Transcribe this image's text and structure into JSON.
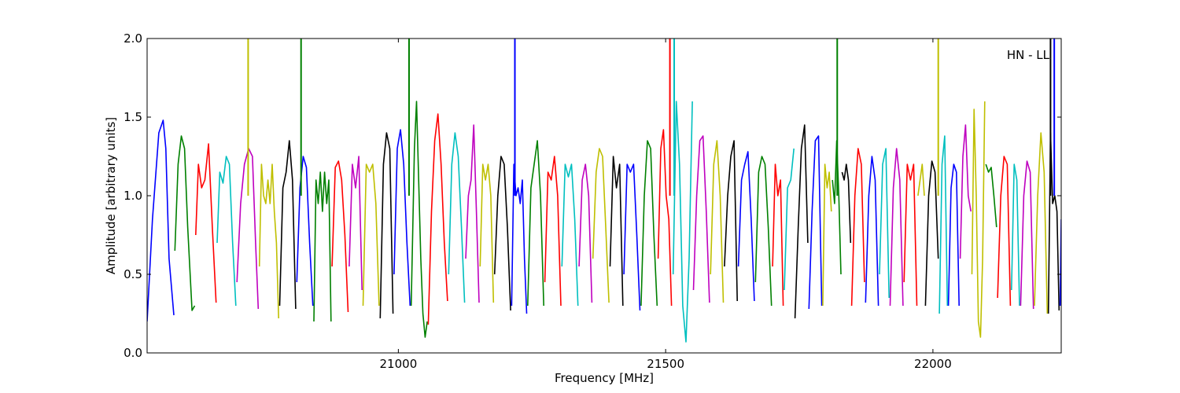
{
  "chart_data": {
    "type": "line",
    "title": "",
    "xlabel": "Frequency [MHz]",
    "ylabel": "Amplitude [arbitrary units]",
    "annotation": "HN - LL",
    "xlim": [
      20530,
      22240
    ],
    "ylim": [
      0.0,
      2.0
    ],
    "xticks": [
      21000,
      21500,
      22000
    ],
    "xtick_labels": [
      "21000",
      "21500",
      "22000"
    ],
    "yticks": [
      0.0,
      0.5,
      1.0,
      1.5,
      2.0
    ],
    "ytick_labels": [
      "0.0",
      "0.5",
      "1.0",
      "1.5",
      "2.0"
    ],
    "grid": false,
    "legend": "none",
    "color_cycle": [
      "#0000ff",
      "#008000",
      "#ff0000",
      "#00bfbf",
      "#bf00bf",
      "#bfbf00",
      "#000000"
    ],
    "series": [
      {
        "color": "#0000ff",
        "x": [
          20530,
          20540,
          20552,
          20560,
          20565,
          20571,
          20580
        ],
        "y": [
          0.2,
          0.85,
          1.4,
          1.48,
          1.3,
          0.6,
          0.24
        ]
      },
      {
        "color": "#008000",
        "x": [
          20582,
          20588,
          20594,
          20600,
          20606,
          20614,
          20619
        ],
        "y": [
          0.65,
          1.2,
          1.38,
          1.3,
          0.8,
          0.27,
          0.3
        ]
      },
      {
        "color": "#ff0000",
        "x": [
          20621,
          20626,
          20632,
          20638,
          20645,
          20652,
          20659
        ],
        "y": [
          0.75,
          1.2,
          1.05,
          1.1,
          1.33,
          0.8,
          0.32
        ]
      },
      {
        "color": "#00bfbf",
        "x": [
          20661,
          20666,
          20672,
          20678,
          20684,
          20690,
          20696
        ],
        "y": [
          0.7,
          1.15,
          1.08,
          1.25,
          1.2,
          0.7,
          0.3
        ]
      },
      {
        "color": "#bf00bf",
        "x": [
          20698,
          20705,
          20712,
          20720,
          20727,
          20733,
          20738
        ],
        "y": [
          0.45,
          0.95,
          1.2,
          1.3,
          1.25,
          0.7,
          0.28
        ]
      },
      {
        "color": "#bfbf00",
        "x": [
          20740,
          20744,
          20748,
          20752,
          20756,
          20760,
          20764,
          20768,
          20772,
          20776
        ],
        "y": [
          0.55,
          1.2,
          1.0,
          0.95,
          1.1,
          0.95,
          1.2,
          0.9,
          0.7,
          0.22
        ]
      },
      {
        "color": "#000000",
        "x": [
          20778,
          20784,
          20790,
          20796,
          20802,
          20808
        ],
        "y": [
          0.3,
          1.05,
          1.15,
          1.35,
          1.1,
          0.28
        ]
      },
      {
        "color": "#0000ff",
        "x": [
          20810,
          20816,
          20822,
          20828,
          20834,
          20840
        ],
        "y": [
          0.45,
          1.05,
          1.25,
          1.18,
          0.7,
          0.3
        ]
      },
      {
        "color": "#008000",
        "x": [
          20842,
          20846,
          20850,
          20854,
          20858,
          20862,
          20866,
          20870,
          20874
        ],
        "y": [
          0.2,
          1.1,
          0.95,
          1.15,
          0.9,
          1.15,
          0.95,
          1.1,
          0.2
        ]
      },
      {
        "color": "#ff0000",
        "x": [
          20876,
          20882,
          20888,
          20894,
          20900,
          20906
        ],
        "y": [
          0.55,
          1.18,
          1.22,
          1.1,
          0.75,
          0.26
        ]
      },
      {
        "color": "#bf00bf",
        "x": [
          20908,
          20914,
          20920,
          20926,
          20932
        ],
        "y": [
          0.55,
          1.2,
          1.05,
          1.25,
          0.4
        ]
      },
      {
        "color": "#bfbf00",
        "x": [
          20934,
          20940,
          20946,
          20952,
          20958,
          20964
        ],
        "y": [
          0.3,
          1.2,
          1.15,
          1.2,
          0.95,
          0.3
        ]
      },
      {
        "color": "#000000",
        "x": [
          20966,
          20972,
          20978,
          20984,
          20990
        ],
        "y": [
          0.22,
          1.2,
          1.4,
          1.3,
          0.25
        ]
      },
      {
        "color": "#0000ff",
        "x": [
          20992,
          20998,
          21004,
          21010,
          21016,
          21022
        ],
        "y": [
          0.5,
          1.3,
          1.42,
          1.2,
          0.7,
          0.3
        ]
      },
      {
        "color": "#008000",
        "x": [
          21024,
          21030,
          21034,
          21038,
          21042,
          21046,
          21050,
          21054
        ],
        "y": [
          0.3,
          1.3,
          1.6,
          1.1,
          0.6,
          0.25,
          0.1,
          0.2
        ]
      },
      {
        "color": "#ff0000",
        "x": [
          21056,
          21062,
          21068,
          21074,
          21080,
          21086,
          21092
        ],
        "y": [
          0.18,
          0.9,
          1.35,
          1.52,
          1.2,
          0.7,
          0.33
        ]
      },
      {
        "color": "#00bfbf",
        "x": [
          21094,
          21100,
          21106,
          21112,
          21118,
          21124
        ],
        "y": [
          0.5,
          1.2,
          1.4,
          1.25,
          0.8,
          0.32
        ]
      },
      {
        "color": "#bf00bf",
        "x": [
          21126,
          21131,
          21136,
          21141,
          21146,
          21151
        ],
        "y": [
          0.6,
          1.0,
          1.1,
          1.45,
          0.9,
          0.32
        ]
      },
      {
        "color": "#bfbf00",
        "x": [
          21153,
          21158,
          21163,
          21168,
          21173,
          21178
        ],
        "y": [
          0.55,
          1.2,
          1.1,
          1.2,
          1.0,
          0.32
        ]
      },
      {
        "color": "#000000",
        "x": [
          21180,
          21186,
          21192,
          21198,
          21204,
          21210
        ],
        "y": [
          0.5,
          1.0,
          1.25,
          1.2,
          0.8,
          0.27
        ]
      },
      {
        "color": "#0000ff",
        "x": [
          21212,
          21216,
          21220,
          21224,
          21228,
          21232,
          21236,
          21240
        ],
        "y": [
          0.3,
          1.2,
          1.0,
          1.05,
          0.95,
          1.1,
          0.6,
          0.25
        ]
      },
      {
        "color": "#008000",
        "x": [
          21242,
          21248,
          21254,
          21260,
          21266,
          21272
        ],
        "y": [
          0.3,
          1.05,
          1.2,
          1.35,
          1.0,
          0.3
        ]
      },
      {
        "color": "#ff0000",
        "x": [
          21274,
          21280,
          21286,
          21292,
          21298,
          21304
        ],
        "y": [
          0.45,
          1.15,
          1.1,
          1.25,
          1.0,
          0.3
        ]
      },
      {
        "color": "#00bfbf",
        "x": [
          21306,
          21312,
          21318,
          21324,
          21330,
          21336
        ],
        "y": [
          0.55,
          1.2,
          1.12,
          1.2,
          0.85,
          0.3
        ]
      },
      {
        "color": "#bf00bf",
        "x": [
          21338,
          21344,
          21350,
          21356,
          21362
        ],
        "y": [
          0.55,
          1.1,
          1.2,
          1.0,
          0.32
        ]
      },
      {
        "color": "#bfbf00",
        "x": [
          21364,
          21370,
          21376,
          21382,
          21388,
          21394
        ],
        "y": [
          0.6,
          1.15,
          1.3,
          1.25,
          0.8,
          0.32
        ]
      },
      {
        "color": "#000000",
        "x": [
          21396,
          21402,
          21408,
          21414,
          21420
        ],
        "y": [
          0.55,
          1.25,
          1.05,
          1.2,
          0.3
        ]
      },
      {
        "color": "#0000ff",
        "x": [
          21422,
          21428,
          21434,
          21440,
          21446,
          21452
        ],
        "y": [
          0.5,
          1.2,
          1.15,
          1.2,
          0.75,
          0.27
        ]
      },
      {
        "color": "#008000",
        "x": [
          21454,
          21460,
          21466,
          21472,
          21478,
          21484
        ],
        "y": [
          0.3,
          1.0,
          1.35,
          1.3,
          0.75,
          0.3
        ]
      },
      {
        "color": "#ff0000",
        "x": [
          21486,
          21491,
          21496,
          21501,
          21506,
          21511
        ],
        "y": [
          0.6,
          1.3,
          1.42,
          1.0,
          0.85,
          0.3
        ]
      },
      {
        "color": "#00bfbf",
        "x": [
          21514,
          21520,
          21526,
          21532,
          21538,
          21544,
          21550
        ],
        "y": [
          0.5,
          1.6,
          1.2,
          0.3,
          0.07,
          0.6,
          1.6
        ]
      },
      {
        "color": "#bf00bf",
        "x": [
          21552,
          21558,
          21564,
          21570,
          21576,
          21582
        ],
        "y": [
          0.4,
          1.0,
          1.35,
          1.38,
          0.9,
          0.32
        ]
      },
      {
        "color": "#bfbf00",
        "x": [
          21584,
          21590,
          21596,
          21602,
          21608
        ],
        "y": [
          0.5,
          1.2,
          1.35,
          1.0,
          0.32
        ]
      },
      {
        "color": "#000000",
        "x": [
          21610,
          21616,
          21622,
          21628,
          21634
        ],
        "y": [
          0.55,
          1.0,
          1.25,
          1.35,
          0.33
        ]
      },
      {
        "color": "#0000ff",
        "x": [
          21636,
          21642,
          21648,
          21654,
          21660,
          21666
        ],
        "y": [
          0.55,
          1.1,
          1.2,
          1.28,
          0.85,
          0.33
        ]
      },
      {
        "color": "#008000",
        "x": [
          21668,
          21674,
          21680,
          21686,
          21692,
          21698
        ],
        "y": [
          0.45,
          1.15,
          1.25,
          1.2,
          0.8,
          0.3
        ]
      },
      {
        "color": "#ff0000",
        "x": [
          21700,
          21705,
          21710,
          21715,
          21720
        ],
        "y": [
          0.55,
          1.2,
          1.0,
          1.1,
          0.3
        ]
      },
      {
        "color": "#00bfbf",
        "x": [
          21722,
          21728,
          21734,
          21740
        ],
        "y": [
          0.4,
          1.05,
          1.1,
          1.3
        ]
      },
      {
        "color": "#000000",
        "x": [
          21742,
          21748,
          21754,
          21760,
          21766
        ],
        "y": [
          0.22,
          0.8,
          1.3,
          1.45,
          0.7
        ]
      },
      {
        "color": "#0000ff",
        "x": [
          21768,
          21774,
          21780,
          21786,
          21792
        ],
        "y": [
          0.28,
          0.9,
          1.35,
          1.38,
          0.3
        ]
      },
      {
        "color": "#bfbf00",
        "x": [
          21794,
          21798,
          21802,
          21806,
          21810
        ],
        "y": [
          0.3,
          1.2,
          1.05,
          1.15,
          0.9
        ]
      },
      {
        "color": "#008000",
        "x": [
          21812,
          21816,
          21820,
          21824,
          21828
        ],
        "y": [
          1.1,
          0.95,
          1.35,
          1.0,
          0.5
        ]
      },
      {
        "color": "#000000",
        "x": [
          21830,
          21834,
          21838,
          21842,
          21846
        ],
        "y": [
          1.15,
          1.1,
          1.2,
          1.1,
          0.7
        ]
      },
      {
        "color": "#ff0000",
        "x": [
          21848,
          21854,
          21860,
          21866,
          21872
        ],
        "y": [
          0.3,
          1.0,
          1.3,
          1.2,
          0.45
        ]
      },
      {
        "color": "#0000ff",
        "x": [
          21874,
          21880,
          21886,
          21892,
          21898
        ],
        "y": [
          0.32,
          1.0,
          1.25,
          1.1,
          0.3
        ]
      },
      {
        "color": "#00bfbf",
        "x": [
          21900,
          21906,
          21912,
          21918
        ],
        "y": [
          0.5,
          1.2,
          1.3,
          0.35
        ]
      },
      {
        "color": "#bf00bf",
        "x": [
          21920,
          21926,
          21932,
          21938,
          21944
        ],
        "y": [
          0.3,
          1.05,
          1.3,
          1.1,
          0.3
        ]
      },
      {
        "color": "#ff0000",
        "x": [
          21946,
          21952,
          21958,
          21964,
          21970
        ],
        "y": [
          0.45,
          1.2,
          1.1,
          1.2,
          0.3
        ]
      },
      {
        "color": "#bfbf00",
        "x": [
          21972,
          21976,
          21980,
          21984
        ],
        "y": [
          1.0,
          1.1,
          1.2,
          1.0
        ]
      },
      {
        "color": "#000000",
        "x": [
          21986,
          21992,
          21998,
          22004,
          22010
        ],
        "y": [
          0.3,
          1.0,
          1.22,
          1.15,
          0.6
        ]
      },
      {
        "color": "#00bfbf",
        "x": [
          22012,
          22017,
          22022,
          22027
        ],
        "y": [
          0.25,
          1.2,
          1.38,
          0.3
        ]
      },
      {
        "color": "#0000ff",
        "x": [
          22029,
          22034,
          22039,
          22044,
          22049
        ],
        "y": [
          0.3,
          1.05,
          1.2,
          1.15,
          0.3
        ]
      },
      {
        "color": "#bf00bf",
        "x": [
          22051,
          22056,
          22061,
          22066,
          22071
        ],
        "y": [
          0.6,
          1.25,
          1.45,
          1.0,
          0.9
        ]
      },
      {
        "color": "#bfbf00",
        "x": [
          22073,
          22077,
          22081,
          22085,
          22089,
          22093,
          22097
        ],
        "y": [
          0.5,
          1.55,
          1.0,
          0.2,
          0.1,
          0.6,
          1.6
        ]
      },
      {
        "color": "#008000",
        "x": [
          22099,
          22104,
          22109,
          22114,
          22119
        ],
        "y": [
          1.2,
          1.15,
          1.18,
          1.0,
          0.8
        ]
      },
      {
        "color": "#ff0000",
        "x": [
          22121,
          22127,
          22133,
          22139,
          22145
        ],
        "y": [
          0.35,
          1.0,
          1.25,
          1.2,
          0.3
        ]
      },
      {
        "color": "#00bfbf",
        "x": [
          22147,
          22152,
          22157,
          22162
        ],
        "y": [
          0.4,
          1.2,
          1.1,
          0.3
        ]
      },
      {
        "color": "#bf00bf",
        "x": [
          22164,
          22170,
          22176,
          22182,
          22188
        ],
        "y": [
          0.3,
          1.0,
          1.22,
          1.15,
          0.28
        ]
      },
      {
        "color": "#bfbf00",
        "x": [
          22190,
          22196,
          22202,
          22208,
          22214
        ],
        "y": [
          0.3,
          1.0,
          1.4,
          1.15,
          0.25
        ]
      },
      {
        "color": "#000000",
        "x": [
          22216,
          22220,
          22224,
          22228,
          22232,
          22236
        ],
        "y": [
          0.25,
          1.4,
          0.95,
          1.0,
          0.9,
          0.27
        ]
      },
      {
        "color": "#0000ff",
        "x": [
          22238,
          22240
        ],
        "y": [
          0.3,
          0.85
        ]
      }
    ],
    "spikes": [
      {
        "x": 20719,
        "color": "#bfbf00"
      },
      {
        "x": 20818,
        "color": "#008000"
      },
      {
        "x": 21020,
        "color": "#008000"
      },
      {
        "x": 21218,
        "color": "#0000ff"
      },
      {
        "x": 21508,
        "color": "#ff0000"
      },
      {
        "x": 21516,
        "color": "#00bfbf"
      },
      {
        "x": 21821,
        "color": "#008000"
      },
      {
        "x": 22010,
        "color": "#bfbf00"
      },
      {
        "x": 22220,
        "color": "#000000"
      },
      {
        "x": 22227,
        "color": "#0000ff"
      }
    ]
  }
}
